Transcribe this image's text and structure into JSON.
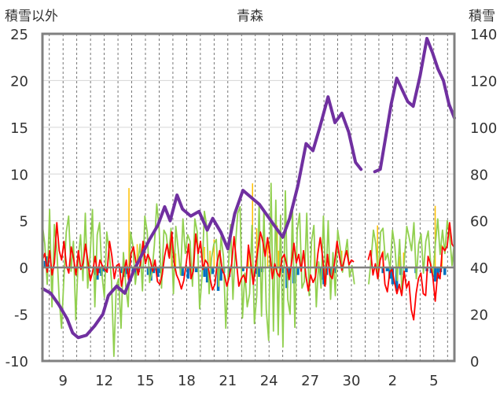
{
  "chart_data": {
    "type": "line",
    "title": "青森",
    "ylabel_left": "積雪以外",
    "ylabel_right": "積雪",
    "y_left": {
      "min": -10,
      "max": 25,
      "ticks": [
        25,
        20,
        15,
        10,
        5,
        0,
        -5,
        -10
      ]
    },
    "y_right": {
      "min": 0,
      "max": 140,
      "ticks": [
        140,
        120,
        100,
        80,
        60,
        40,
        20,
        0
      ]
    },
    "x": {
      "min": 0,
      "max": 30,
      "tick_positions": [
        1.5,
        4.5,
        7.5,
        10.5,
        13.5,
        16.5,
        19.5,
        22.5,
        25.5,
        28.5
      ],
      "tick_labels": [
        "9",
        "12",
        "15",
        "18",
        "21",
        "24",
        "27",
        "30",
        "2",
        "5"
      ]
    },
    "grid": {
      "vertical": true,
      "horizontal": true
    },
    "colors": {
      "snow_depth": "#7030A0",
      "temperature": "#FF0000",
      "wind": "#92D050",
      "precip": "#0070C0",
      "sunshine": "#FFC000",
      "zero_line": "#808080",
      "frame": "#808080"
    },
    "series": [
      {
        "key": "snow_depth",
        "axis": "right",
        "segments": [
          [
            [
              0.0,
              31
            ],
            [
              0.6,
              29
            ],
            [
              1.2,
              24
            ],
            [
              1.8,
              18
            ],
            [
              2.2,
              12
            ],
            [
              2.6,
              10
            ],
            [
              3.2,
              11
            ],
            [
              3.8,
              15
            ],
            [
              4.4,
              20
            ],
            [
              4.8,
              28
            ],
            [
              5.4,
              32
            ],
            [
              6.0,
              29
            ],
            [
              6.6,
              38
            ],
            [
              7.2,
              45
            ],
            [
              7.8,
              52
            ],
            [
              8.4,
              58
            ],
            [
              8.9,
              66
            ],
            [
              9.3,
              60
            ],
            [
              9.8,
              71
            ],
            [
              10.2,
              65
            ],
            [
              10.8,
              62
            ],
            [
              11.4,
              64
            ],
            [
              12.0,
              56
            ],
            [
              12.4,
              61
            ],
            [
              13.0,
              55
            ],
            [
              13.5,
              48
            ],
            [
              14.0,
              63
            ],
            [
              14.6,
              73
            ],
            [
              15.2,
              70
            ],
            [
              15.8,
              67
            ],
            [
              16.4,
              62
            ],
            [
              17.0,
              57
            ],
            [
              17.5,
              53
            ],
            [
              18.0,
              61
            ],
            [
              18.6,
              75
            ],
            [
              19.2,
              93
            ],
            [
              19.7,
              90
            ],
            [
              20.2,
              100
            ],
            [
              20.8,
              113
            ],
            [
              21.3,
              102
            ],
            [
              21.8,
              106
            ],
            [
              22.3,
              98
            ],
            [
              22.8,
              85
            ],
            [
              23.2,
              82
            ]
          ],
          [
            [
              24.2,
              81
            ],
            [
              24.6,
              82
            ],
            [
              25.0,
              96
            ],
            [
              25.4,
              110
            ],
            [
              25.8,
              121
            ],
            [
              26.2,
              116
            ],
            [
              26.6,
              111
            ],
            [
              27.0,
              109
            ],
            [
              27.5,
              122
            ],
            [
              28.0,
              138
            ],
            [
              28.4,
              132
            ],
            [
              28.8,
              125
            ],
            [
              29.2,
              120
            ],
            [
              29.6,
              110
            ],
            [
              30.0,
              104
            ]
          ]
        ]
      },
      {
        "key": "temperature",
        "axis": "left",
        "values": [
          0.8,
          1.5,
          -0.5,
          1.8,
          -0.8,
          0.5,
          4.8,
          1.8,
          0.8,
          2.8,
          0.2,
          -0.6,
          2.2,
          1.0,
          -0.8,
          1.8,
          -0.2,
          0.5,
          2.5,
          0.6,
          -1.4,
          -0.4,
          1.2,
          -0.8,
          0.8,
          0.2,
          -0.2,
          -0.5,
          2.8,
          1.2,
          -1.2,
          0.2,
          0.4,
          -2.0,
          -0.5,
          0.8,
          -1.4,
          1.5,
          2.2,
          0.6,
          -0.8,
          0.6,
          2.8,
          0.4,
          1.4,
          0.8,
          -0.4,
          0.8,
          -1.5,
          -1.8,
          -0.8,
          1.2,
          2.5,
          1.0,
          3.8,
          0.5,
          -0.8,
          -1.4,
          -2.3,
          -1.4,
          0.4,
          2.5,
          -1.2,
          -0.4,
          3.6,
          1.5,
          2.8,
          -0.2,
          0.8,
          0.4,
          -1.2,
          -2.4,
          -1.8,
          0.6,
          1.8,
          -0.2,
          -0.8,
          -2.0,
          -1.0,
          0.4,
          3.3,
          0.6,
          -2.0,
          -1.2,
          -0.8,
          -1.6,
          2.4,
          0.4,
          -1.8,
          0.2,
          2.0,
          3.8,
          2.8,
          1.2,
          3.2,
          1.4,
          -1.2,
          0.4,
          -0.6,
          -1.0,
          1.0,
          1.4,
          0.2,
          -1.3,
          0.5,
          2.6,
          0.5,
          1.4,
          -0.4,
          1.8,
          -0.9,
          -2.5,
          -0.8,
          -1.6,
          -1.0,
          1.5,
          3.2,
          1.0,
          -2.0,
          1.4,
          -0.8,
          -1.2,
          0.6,
          2.8,
          1.2,
          -0.3,
          0.8,
          1.8,
          0.3,
          0.8,
          0.6,
          null,
          null,
          null,
          null,
          null,
          0.8,
          1.8,
          -0.8,
          0.4,
          -1.2,
          0.8,
          1.6,
          -1.8,
          -2.6,
          -0.5,
          -0.2,
          -1.6,
          -2.8,
          -1.8,
          -3.0,
          -0.4,
          -2.2,
          -1.5,
          -4.5,
          -5.6,
          -2.8,
          -1.2,
          -0.6,
          -2.8,
          -3.0,
          1.2,
          0.4,
          -1.0,
          -3.6,
          -0.6,
          -1.2,
          2.2,
          1.8,
          2.3,
          4.8,
          2.5,
          2.1
        ]
      },
      {
        "key": "wind",
        "axis": "left",
        "values": [
          4.5,
          2.5,
          -1.8,
          6.2,
          -4.2,
          4.6,
          2.1,
          -3.2,
          -6.5,
          -1.2,
          3.8,
          5.5,
          -0.4,
          2.8,
          -5.6,
          0.8,
          3.5,
          -1.4,
          5.8,
          -2.2,
          1.2,
          6.2,
          -4.2,
          3.5,
          4.8,
          -0.8,
          -3.2,
          3.8,
          1.8,
          -1.4,
          -9.5,
          -2.0,
          -1.2,
          -6.5,
          1.6,
          -2.0,
          -4.2,
          3.8,
          2.3,
          -1.8,
          0.5,
          2.5,
          -2.5,
          5.5,
          3.8,
          -1.6,
          -0.5,
          2.4,
          6.8,
          4.2,
          -2.2,
          4.0,
          3.5,
          1.2,
          4.2,
          -2.8,
          4.4,
          2.0,
          -0.8,
          5.2,
          1.5,
          3.5,
          2.8,
          -2.0,
          5.2,
          3.8,
          -4.4,
          -1.0,
          6.0,
          4.4,
          -2.8,
          1.0,
          2.5,
          3.0,
          -2.0,
          3.3,
          1.2,
          -6.5,
          -0.5,
          4.6,
          -3.4,
          2.2,
          5.8,
          6.5,
          -5.4,
          -0.6,
          -4.2,
          -2.8,
          4.5,
          -6.0,
          -3.0,
          6.8,
          -5.2,
          6.2,
          -4.5,
          -7.8,
          9.0,
          -6.8,
          7.2,
          -7.2,
          5.6,
          -8.5,
          8.2,
          -3.4,
          -5.0,
          6.4,
          -6.4,
          4.0,
          5.8,
          -2.2,
          -1.5,
          5.8,
          -3.0,
          2.8,
          4.5,
          -4.2,
          0.6,
          -2.2,
          5.5,
          -1.8,
          5.0,
          -3.4,
          1.6,
          -3.0,
          4.0,
          2.2,
          -0.5,
          1.2,
          3.0,
          -1.0,
          0.2,
          -1.8,
          null,
          null,
          null,
          null,
          null,
          -1.8,
          0.8,
          4.0,
          2.5,
          -1.2,
          3.8,
          4.2,
          0.8,
          1.5,
          -0.2,
          4.0,
          2.2,
          -1.4,
          3.0,
          -2.8,
          0.8,
          4.4,
          3.2,
          1.8,
          4.8,
          -1.2,
          2.5,
          3.6,
          -0.6,
          2.8,
          3.9,
          0.5,
          -0.8,
          2.5,
          5.2,
          1.4,
          4.0,
          1.5,
          5.0,
          3.5,
          0.2,
          2.8
        ]
      },
      {
        "key": "precip",
        "axis": "left",
        "bars": [
          [
            0.2,
            0.7
          ],
          [
            0.3,
            1.2
          ],
          [
            0.4,
            0.6
          ],
          [
            3.9,
            -0.8
          ],
          [
            4.0,
            -1.3
          ],
          [
            4.1,
            -0.6
          ],
          [
            4.3,
            -0.9
          ],
          [
            4.4,
            -0.4
          ],
          [
            4.6,
            -0.5
          ],
          [
            5.8,
            -0.6
          ],
          [
            6.0,
            -1.0
          ],
          [
            6.2,
            -0.7
          ],
          [
            6.6,
            -0.4
          ],
          [
            6.8,
            -0.9
          ],
          [
            7.0,
            -0.5
          ],
          [
            7.7,
            -0.8
          ],
          [
            7.9,
            -1.4
          ],
          [
            8.1,
            -0.6
          ],
          [
            8.3,
            -0.3
          ],
          [
            8.4,
            -1.0
          ],
          [
            8.6,
            -0.6
          ],
          [
            10.2,
            -0.9
          ],
          [
            10.6,
            -1.2
          ],
          [
            11.2,
            -0.5
          ],
          [
            11.8,
            -1.0
          ],
          [
            12.0,
            -1.6
          ],
          [
            12.4,
            -0.7
          ],
          [
            12.8,
            -2.5
          ],
          [
            13.0,
            -1.4
          ],
          [
            13.2,
            -0.6
          ],
          [
            13.6,
            -1.0
          ],
          [
            14.6,
            -0.4
          ],
          [
            15.6,
            -0.7
          ],
          [
            15.8,
            -1.0
          ],
          [
            16.0,
            -0.5
          ],
          [
            17.5,
            -0.6
          ],
          [
            17.8,
            -2.2
          ],
          [
            18.0,
            -1.0
          ],
          [
            18.3,
            -1.7
          ],
          [
            18.6,
            -0.8
          ],
          [
            20.3,
            -1.3
          ],
          [
            20.5,
            -1.8
          ],
          [
            20.7,
            -0.8
          ],
          [
            21.0,
            -1.0
          ],
          [
            21.3,
            -0.6
          ],
          [
            24.8,
            -0.6
          ],
          [
            25.1,
            -0.4
          ],
          [
            25.3,
            -1.2
          ],
          [
            25.5,
            -1.8
          ],
          [
            25.8,
            -2.5
          ],
          [
            26.1,
            -0.8
          ],
          [
            26.5,
            -0.5
          ],
          [
            27.2,
            -0.6
          ],
          [
            28.0,
            -0.4
          ],
          [
            28.3,
            -0.6
          ],
          [
            28.6,
            -1.5
          ],
          [
            28.8,
            -1.2
          ],
          [
            29.0,
            -0.5
          ],
          [
            29.3,
            -0.8
          ]
        ]
      },
      {
        "key": "sunshine",
        "axis": "left",
        "bars": [
          [
            6.3,
            8.5
          ],
          [
            6.9,
            2.5
          ],
          [
            9.4,
            3.2
          ],
          [
            9.7,
            1.5
          ],
          [
            11.8,
            2.2
          ],
          [
            12.2,
            1.8
          ],
          [
            12.5,
            3.0
          ],
          [
            15.0,
            2.4
          ],
          [
            15.3,
            9.0
          ],
          [
            15.6,
            4.2
          ],
          [
            16.4,
            2.8
          ],
          [
            17.1,
            4.5
          ],
          [
            17.2,
            1.8
          ],
          [
            19.8,
            3.5
          ],
          [
            21.8,
            1.8
          ],
          [
            24.4,
            4.5
          ],
          [
            24.8,
            1.8
          ],
          [
            26.0,
            1.2
          ],
          [
            26.3,
            1.6
          ],
          [
            28.6,
            6.6
          ],
          [
            29.1,
            2.4
          ]
        ]
      }
    ]
  }
}
